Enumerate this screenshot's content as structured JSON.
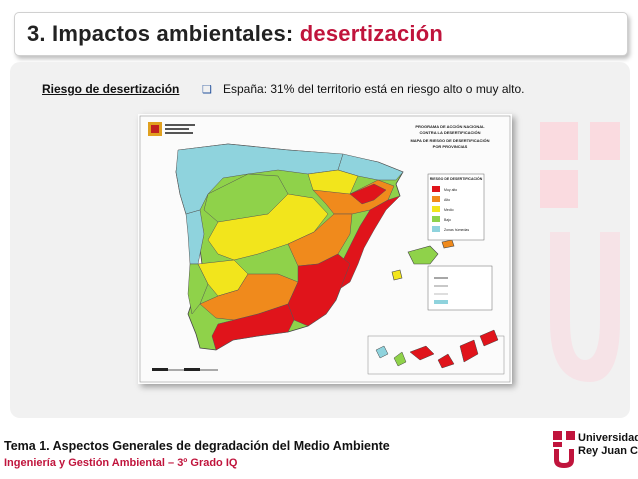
{
  "slide": {
    "title_prefix": "3. Impactos ambientales: ",
    "title_accent": "desertización",
    "subheading": "Riesgo de desertización",
    "bullet": "España: 31% del territorio está en riesgo alto o muy alto."
  },
  "map": {
    "header_line1": "PROGRAMA DE ACCIÓN NACIONAL",
    "header_line2": "CONTRA LA DESERTIFICACIÓN",
    "header_line3": "MAPA DE RIESGO DE DESERTIFICACIÓN",
    "header_line4": "POR PROVINCIAS",
    "legend_title": "RIESGO DE DESERTIFICACIÓN",
    "legend_items": [
      {
        "label": "Muy alto",
        "color": "#e0141b"
      },
      {
        "label": "Alto",
        "color": "#f08a1c"
      },
      {
        "label": "Medio",
        "color": "#f2e51c"
      },
      {
        "label": "Bajo",
        "color": "#8fd24a"
      },
      {
        "label": "Zonas húmedas",
        "color": "#8fd3dd"
      }
    ],
    "colors": {
      "very_high": "#e0141b",
      "high": "#f08a1c",
      "medium": "#f2e51c",
      "low": "#8fd24a",
      "humid": "#8fd3dd",
      "water": "#ffffff"
    }
  },
  "footer": {
    "title": "Tema 1. Aspectos Generales de degradación del Medio Ambiente",
    "subtitle": "Ingeniería y Gestión Ambiental – 3º Grado IQ"
  },
  "logo": {
    "line1": "Universidad",
    "line2": "Rey Juan Carlos"
  },
  "accent_color": "#c0143c"
}
